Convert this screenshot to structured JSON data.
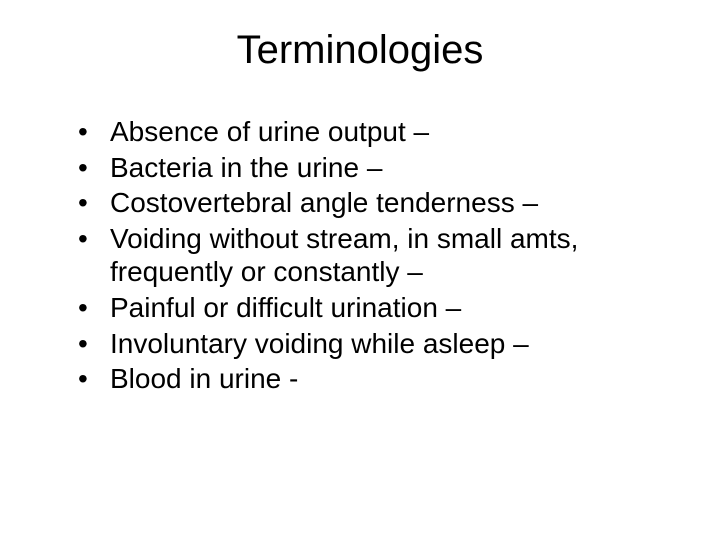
{
  "slide": {
    "title": "Terminologies",
    "bullets": [
      "Absence of urine output –",
      "Bacteria in the urine –",
      "Costovertebral angle tenderness –",
      "Voiding without stream, in small amts, frequently or constantly –",
      "Painful or difficult urination –",
      "Involuntary voiding while asleep –",
      "Blood in urine -"
    ],
    "title_fontsize": 40,
    "bullet_fontsize": 28,
    "background_color": "#ffffff",
    "text_color": "#000000",
    "font_family": "Arial"
  }
}
